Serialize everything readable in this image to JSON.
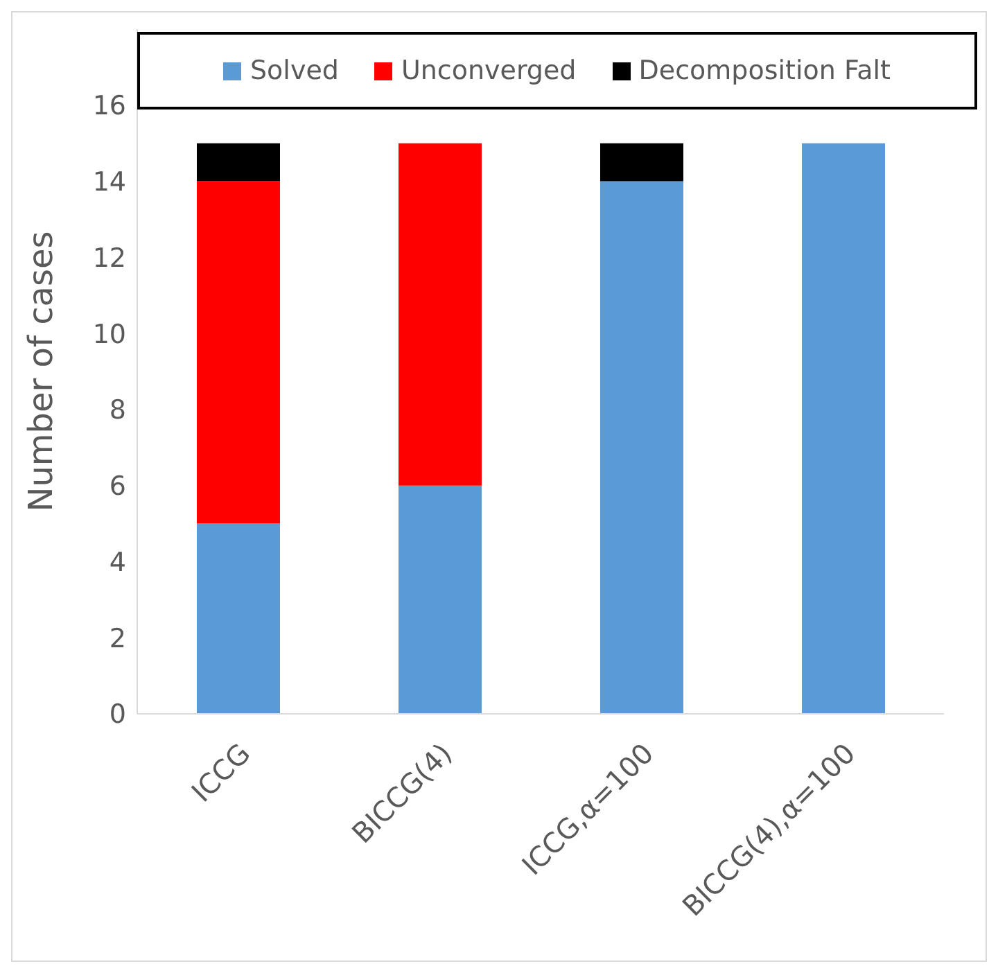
{
  "chart_data": {
    "type": "bar",
    "stacked": true,
    "ylabel": "Number of cases",
    "categories": [
      "ICCG",
      "BICCG(4)",
      "ICCG,α=100",
      "BICCG(4),α=100"
    ],
    "series": [
      {
        "name": "Solved",
        "color": "#5b9bd5",
        "values": [
          5,
          6,
          14,
          15
        ]
      },
      {
        "name": "Unconverged",
        "color": "#ff0000",
        "values": [
          9,
          9,
          0,
          0
        ]
      },
      {
        "name": "Decomposition Falt",
        "color": "#000000",
        "values": [
          1,
          0,
          1,
          0
        ]
      }
    ],
    "ylim": [
      0,
      18
    ],
    "yticks": [
      0,
      2,
      4,
      6,
      8,
      10,
      12,
      14,
      16
    ],
    "grid": false,
    "legend": "top"
  }
}
